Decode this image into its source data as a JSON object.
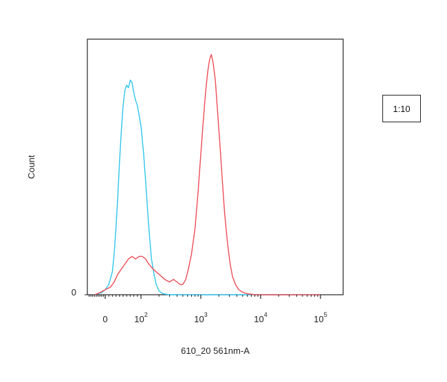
{
  "legend": {
    "label": "1:10"
  },
  "chart_data": {
    "type": "line",
    "xlabel": "610_20 561nm-A",
    "ylabel": "Count",
    "x_scale": "biexponential",
    "x_ticks": [
      {
        "value": 0,
        "base": "0",
        "exp": ""
      },
      {
        "value": 100,
        "base": "10",
        "exp": "2"
      },
      {
        "value": 1000,
        "base": "10",
        "exp": "3"
      },
      {
        "value": 10000,
        "base": "10",
        "exp": "4"
      },
      {
        "value": 100000,
        "base": "10",
        "exp": "5"
      }
    ],
    "y_ticks": [
      {
        "value": 0,
        "label": "0"
      }
    ],
    "ylim": [
      0,
      100
    ],
    "grid": false,
    "series": [
      {
        "color": "#2ec5ec",
        "points": [
          [
            -60,
            0
          ],
          [
            -20,
            0.8
          ],
          [
            0,
            2
          ],
          [
            10,
            4
          ],
          [
            20,
            9
          ],
          [
            25,
            16
          ],
          [
            30,
            26
          ],
          [
            35,
            38
          ],
          [
            40,
            52
          ],
          [
            45,
            64
          ],
          [
            50,
            74
          ],
          [
            55,
            80
          ],
          [
            60,
            82
          ],
          [
            65,
            81
          ],
          [
            70,
            84
          ],
          [
            75,
            83
          ],
          [
            80,
            79
          ],
          [
            85,
            76
          ],
          [
            90,
            74
          ],
          [
            95,
            70
          ],
          [
            100,
            66
          ],
          [
            110,
            56
          ],
          [
            120,
            44
          ],
          [
            130,
            32
          ],
          [
            140,
            22
          ],
          [
            150,
            14
          ],
          [
            165,
            8
          ],
          [
            180,
            4
          ],
          [
            200,
            1.5
          ],
          [
            230,
            0.4
          ],
          [
            300,
            0
          ],
          [
            100000,
            0
          ]
        ]
      },
      {
        "color": "#ee4d55",
        "points": [
          [
            -60,
            0
          ],
          [
            -30,
            0.8
          ],
          [
            0,
            2
          ],
          [
            15,
            3
          ],
          [
            25,
            5
          ],
          [
            35,
            8
          ],
          [
            45,
            10
          ],
          [
            55,
            12
          ],
          [
            65,
            14
          ],
          [
            75,
            15
          ],
          [
            85,
            14
          ],
          [
            95,
            15
          ],
          [
            105,
            15
          ],
          [
            120,
            14
          ],
          [
            135,
            12
          ],
          [
            160,
            10
          ],
          [
            200,
            8
          ],
          [
            250,
            6
          ],
          [
            300,
            5
          ],
          [
            350,
            6
          ],
          [
            400,
            5
          ],
          [
            450,
            4
          ],
          [
            500,
            4
          ],
          [
            560,
            6
          ],
          [
            620,
            10
          ],
          [
            700,
            16
          ],
          [
            800,
            26
          ],
          [
            900,
            40
          ],
          [
            1000,
            55
          ],
          [
            1100,
            68
          ],
          [
            1200,
            79
          ],
          [
            1300,
            87
          ],
          [
            1400,
            92
          ],
          [
            1500,
            94
          ],
          [
            1600,
            91
          ],
          [
            1750,
            84
          ],
          [
            1900,
            72
          ],
          [
            2100,
            58
          ],
          [
            2300,
            44
          ],
          [
            2500,
            32
          ],
          [
            2800,
            20
          ],
          [
            3100,
            12
          ],
          [
            3400,
            7
          ],
          [
            3800,
            4
          ],
          [
            4300,
            2
          ],
          [
            5000,
            1
          ],
          [
            6000,
            0.4
          ],
          [
            8000,
            0
          ],
          [
            100000,
            0
          ]
        ]
      }
    ]
  }
}
